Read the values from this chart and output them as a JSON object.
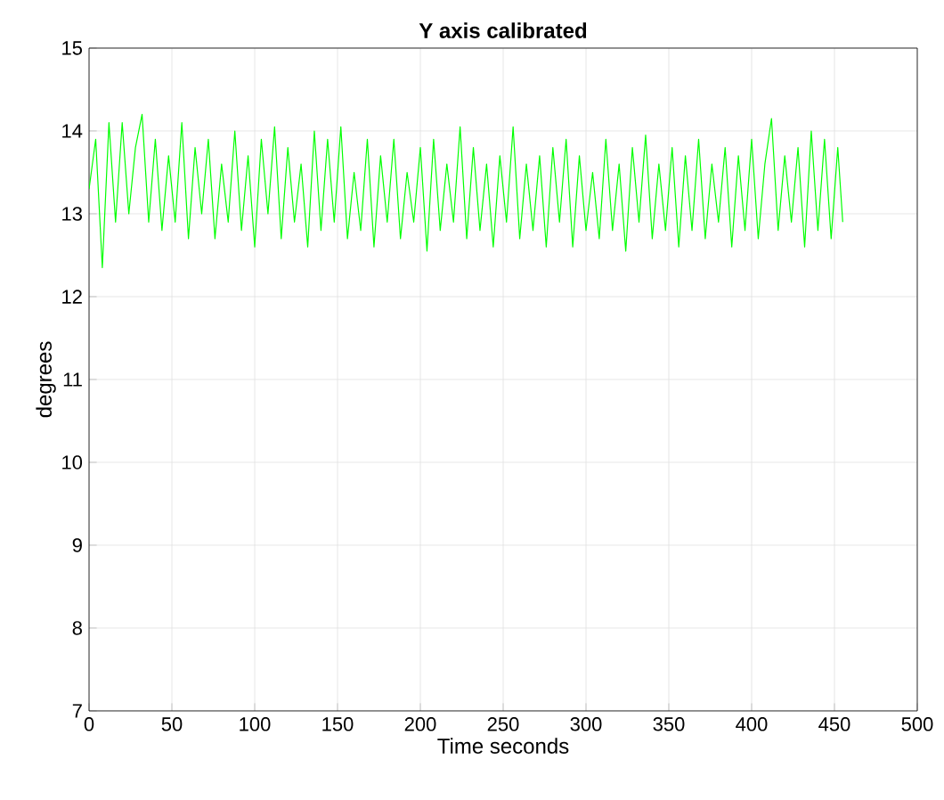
{
  "chart_data": {
    "type": "line",
    "title": "**Y axis calibrated**",
    "xlabel": "Time seconds",
    "ylabel": "degrees",
    "x": [
      0,
      4,
      8,
      12,
      16,
      20,
      24,
      28,
      32,
      36,
      40,
      44,
      48,
      52,
      56,
      60,
      64,
      68,
      72,
      76,
      80,
      84,
      88,
      92,
      96,
      100,
      104,
      108,
      112,
      116,
      120,
      124,
      128,
      132,
      136,
      140,
      144,
      148,
      152,
      156,
      160,
      164,
      168,
      172,
      176,
      180,
      184,
      188,
      192,
      196,
      200,
      204,
      208,
      212,
      216,
      220,
      224,
      228,
      232,
      236,
      240,
      244,
      248,
      252,
      256,
      260,
      264,
      268,
      272,
      276,
      280,
      284,
      288,
      292,
      296,
      300,
      304,
      308,
      312,
      316,
      320,
      324,
      328,
      332,
      336,
      340,
      344,
      348,
      352,
      356,
      360,
      364,
      368,
      372,
      376,
      380,
      384,
      388,
      392,
      396,
      400,
      404,
      408,
      412,
      416,
      420,
      424,
      428,
      432,
      436,
      440,
      444,
      448,
      452,
      455
    ],
    "values": [
      13.3,
      13.9,
      12.35,
      14.1,
      12.9,
      14.1,
      13.0,
      13.8,
      14.2,
      12.9,
      13.9,
      12.8,
      13.7,
      12.9,
      14.1,
      12.7,
      13.8,
      13.0,
      13.9,
      12.7,
      13.6,
      12.9,
      14.0,
      12.8,
      13.7,
      12.6,
      13.9,
      13.0,
      14.05,
      12.7,
      13.8,
      12.9,
      13.6,
      12.6,
      14.0,
      12.8,
      13.9,
      12.9,
      14.05,
      12.7,
      13.5,
      12.8,
      13.9,
      12.6,
      13.7,
      12.9,
      13.9,
      12.7,
      13.5,
      12.9,
      13.8,
      12.55,
      13.9,
      12.8,
      13.6,
      12.9,
      14.05,
      12.7,
      13.8,
      12.8,
      13.6,
      12.6,
      13.7,
      12.9,
      14.05,
      12.7,
      13.6,
      12.8,
      13.7,
      12.6,
      13.8,
      12.9,
      13.9,
      12.6,
      13.7,
      12.8,
      13.5,
      12.7,
      13.9,
      12.8,
      13.6,
      12.55,
      13.8,
      12.9,
      13.95,
      12.7,
      13.6,
      12.8,
      13.8,
      12.6,
      13.7,
      12.8,
      13.9,
      12.7,
      13.6,
      12.9,
      13.8,
      12.6,
      13.7,
      12.8,
      13.9,
      12.7,
      13.6,
      14.15,
      12.8,
      13.7,
      12.9,
      13.8,
      12.6,
      14.0,
      12.8,
      13.9,
      12.7,
      13.8,
      12.9
    ],
    "color": "#00ff00",
    "xlim": [
      0,
      500
    ],
    "ylim": [
      7,
      15
    ],
    "xticks": [
      0,
      50,
      100,
      150,
      200,
      250,
      300,
      350,
      400,
      450,
      500
    ],
    "yticks": [
      7,
      8,
      9,
      10,
      11,
      12,
      13,
      14,
      15
    ],
    "grid": true
  }
}
